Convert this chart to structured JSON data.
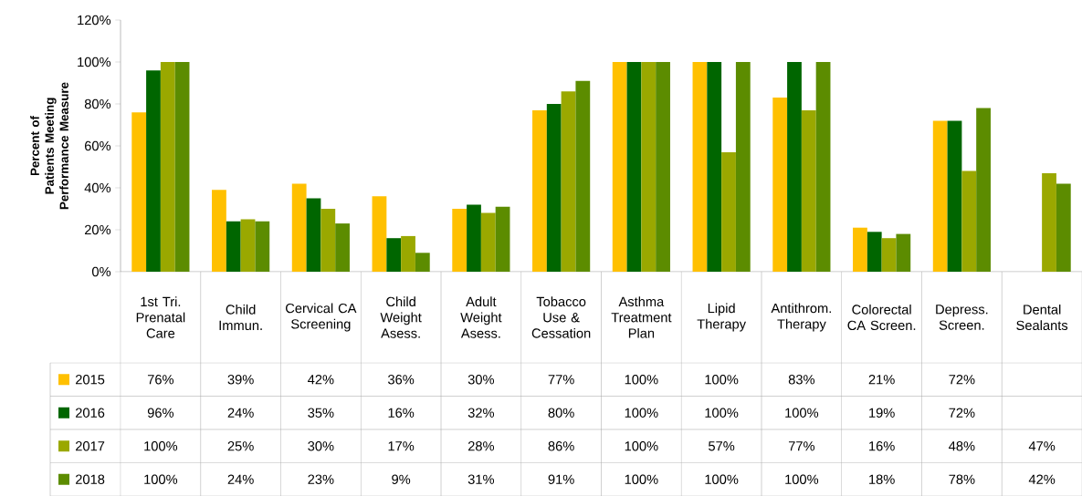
{
  "chart_data": {
    "type": "bar",
    "ylabel": "Percent of Patients Meeting Performance Measure",
    "categories": [
      "1st Tri. Prenatal Care",
      "Child Immun.",
      "Cervical CA Screening",
      "Child Weight Asess.",
      "Adult Weight Asess.",
      "Tobacco Use & Cessation",
      "Asthma Treatment Plan",
      "Lipid Therapy",
      "Antithrom. Therapy",
      "Colorectal CA Screen.",
      "Depress. Screen.",
      "Dental Sealants"
    ],
    "ylim": [
      0,
      120
    ],
    "yticks": [
      {
        "value": 0,
        "label": "0%"
      },
      {
        "value": 20,
        "label": "20%"
      },
      {
        "value": 40,
        "label": "40%"
      },
      {
        "value": 60,
        "label": "60%"
      },
      {
        "value": 80,
        "label": "80%"
      },
      {
        "value": 100,
        "label": "100%"
      },
      {
        "value": 120,
        "label": "120%"
      }
    ],
    "legend": "bottom left",
    "series": [
      {
        "name": "2015",
        "color": "#ffc000",
        "values": [
          76,
          39,
          42,
          36,
          30,
          77,
          100,
          100,
          83,
          21,
          72,
          null
        ],
        "value_labels": [
          "76%",
          "39%",
          "42%",
          "36%",
          "30%",
          "77%",
          "100%",
          "100%",
          "83%",
          "21%",
          "72%",
          null
        ]
      },
      {
        "name": "2016",
        "color": "#006600",
        "values": [
          96,
          24,
          35,
          16,
          32,
          80,
          100,
          100,
          100,
          19,
          72,
          null
        ],
        "value_labels": [
          "96%",
          "24%",
          "35%",
          "16%",
          "32%",
          "80%",
          "100%",
          "100%",
          "100%",
          "19%",
          "72%",
          null
        ]
      },
      {
        "name": "2017",
        "color": "#9aa800",
        "values": [
          100,
          25,
          30,
          17,
          28,
          86,
          100,
          57,
          77,
          16,
          48,
          47
        ],
        "value_labels": [
          "100%",
          "25%",
          "30%",
          "17%",
          "28%",
          "86%",
          "100%",
          "57%",
          "77%",
          "16%",
          "48%",
          "47%"
        ]
      },
      {
        "name": "2018",
        "color": "#5c8c00",
        "values": [
          100,
          24,
          23,
          9,
          31,
          91,
          100,
          100,
          100,
          18,
          78,
          42
        ],
        "value_labels": [
          "100%",
          "24%",
          "23%",
          "9%",
          "31%",
          "91%",
          "100%",
          "100%",
          "100%",
          "18%",
          "78%",
          "42%"
        ]
      }
    ]
  }
}
